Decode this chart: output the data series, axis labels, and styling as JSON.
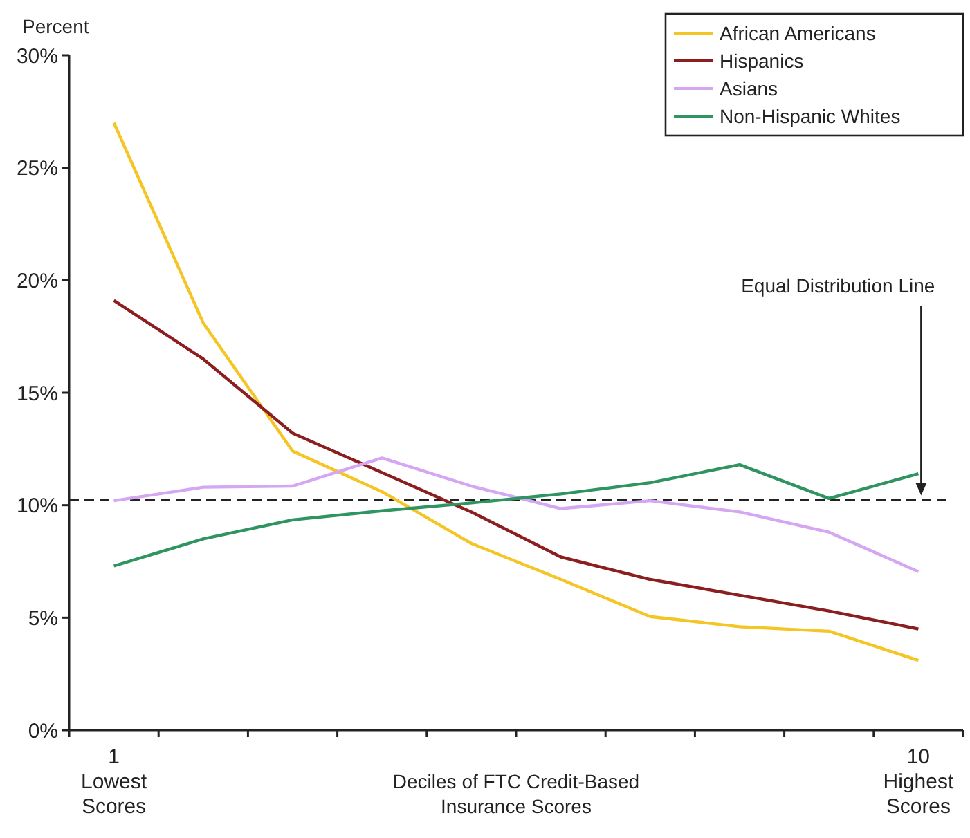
{
  "chart_data": {
    "type": "line",
    "ylabel": "Percent",
    "xlabel": "Deciles of FTC Credit-Based\nInsurance Scores",
    "categories": [
      "1\nLowest\nScores",
      null,
      null,
      null,
      null,
      null,
      null,
      null,
      null,
      "10\nHighest\nScores"
    ],
    "series": [
      {
        "name": "African Americans",
        "color": "#f5c425",
        "values": [
          27.0,
          18.1,
          12.4,
          10.6,
          8.3,
          6.7,
          5.05,
          4.6,
          4.4,
          3.1
        ]
      },
      {
        "name": "Hispanics",
        "color": "#8b1f1f",
        "values": [
          19.1,
          16.5,
          13.2,
          11.45,
          9.7,
          7.7,
          6.7,
          6.0,
          5.3,
          4.5
        ]
      },
      {
        "name": "Asians",
        "color": "#d5a6f2",
        "values": [
          10.2,
          10.8,
          10.85,
          12.1,
          10.85,
          9.85,
          10.2,
          9.7,
          8.8,
          7.05
        ]
      },
      {
        "name": "Non-Hispanic Whites",
        "color": "#2f9461",
        "values": [
          7.3,
          8.5,
          9.35,
          9.75,
          10.1,
          10.5,
          11.0,
          11.8,
          10.3,
          11.4
        ]
      }
    ],
    "ylim": [
      0,
      30
    ],
    "yticks": [
      {
        "value": 0,
        "label": "0%"
      },
      {
        "value": 5,
        "label": "5%"
      },
      {
        "value": 10,
        "label": "10%"
      },
      {
        "value": 15,
        "label": "15%"
      },
      {
        "value": 20,
        "label": "20%"
      },
      {
        "value": 25,
        "label": "25%"
      },
      {
        "value": 30,
        "label": "30%"
      }
    ],
    "ref_lines": [
      {
        "axis": "y",
        "value": 10.25,
        "label": "Equal Distribution Line",
        "color": "#222222",
        "line_style": "dashed"
      }
    ],
    "legend": "top right",
    "grid": false,
    "marker": "none",
    "line_style": "solid"
  }
}
